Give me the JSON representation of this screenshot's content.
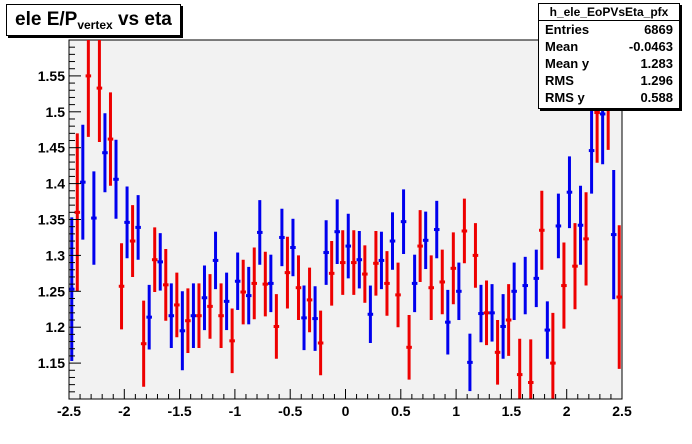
{
  "title": {
    "main": "ele E/P",
    "sub": "vertex",
    "rest": " vs eta"
  },
  "stats": {
    "name": "h_ele_EoPVsEta_pfx",
    "rows": [
      {
        "label": "Entries",
        "value": "6869"
      },
      {
        "label": "Mean",
        "value": "-0.0463"
      },
      {
        "label": "Mean y",
        "value": "1.283"
      },
      {
        "label": "RMS",
        "value": "1.296"
      },
      {
        "label": "RMS y",
        "value": "0.588"
      }
    ]
  },
  "chart_data": {
    "type": "scatter",
    "xlim": [
      -2.5,
      2.5
    ],
    "ylim": [
      1.1,
      1.6
    ],
    "xticks": [
      -2.5,
      -2,
      -1.5,
      -1,
      -0.5,
      0,
      0.5,
      1,
      1.5,
      2,
      2.5
    ],
    "xtick_labels": [
      "-2.5",
      "-2",
      "-1.5",
      "-1",
      "-0.5",
      "0",
      "0.5",
      "1",
      "1.5",
      "2",
      "2.5"
    ],
    "yticks": [
      1.15,
      1.2,
      1.25,
      1.3,
      1.35,
      1.4,
      1.45,
      1.5,
      1.55
    ],
    "ytick_labels": [
      "1.15",
      "1.2",
      "1.25",
      "1.3",
      "1.35",
      "1.4",
      "1.45",
      "1.5",
      "1.55"
    ],
    "background": "#f2f2f2",
    "series": [
      {
        "color": "#0000ee",
        "x": [
          -2.475,
          -2.375,
          -2.275,
          -2.175,
          -2.075,
          -1.975,
          -1.875,
          -1.775,
          -1.675,
          -1.575,
          -1.475,
          -1.375,
          -1.275,
          -1.175,
          -1.075,
          -0.975,
          -0.875,
          -0.775,
          -0.675,
          -0.575,
          -0.475,
          -0.375,
          -0.275,
          -0.175,
          -0.075,
          0.025,
          0.125,
          0.225,
          0.325,
          0.425,
          0.525,
          0.625,
          0.725,
          0.825,
          0.925,
          1.025,
          1.125,
          1.225,
          1.325,
          1.425,
          1.525,
          1.625,
          1.725,
          1.825,
          1.925,
          2.025,
          2.125,
          2.225,
          2.325,
          2.425
        ],
        "y": [
          1.253,
          1.402,
          1.352,
          1.443,
          1.406,
          1.346,
          1.339,
          1.214,
          1.291,
          1.216,
          1.195,
          1.216,
          1.241,
          1.293,
          1.236,
          1.264,
          1.244,
          1.332,
          1.261,
          1.325,
          1.311,
          1.213,
          1.212,
          1.304,
          1.333,
          1.313,
          1.294,
          1.218,
          1.293,
          1.32,
          1.347,
          1.261,
          1.321,
          1.336,
          1.207,
          1.25,
          1.151,
          1.219,
          1.22,
          1.201,
          1.25,
          1.258,
          1.268,
          1.196,
          1.341,
          1.388,
          1.342,
          1.446,
          1.497,
          1.329
        ],
        "err_lo": [
          0.1,
          0.08,
          0.065,
          0.055,
          0.055,
          0.05,
          0.045,
          0.045,
          0.04,
          0.045,
          0.055,
          0.045,
          0.045,
          0.04,
          0.04,
          0.04,
          0.04,
          0.045,
          0.04,
          0.04,
          0.04,
          0.045,
          0.045,
          0.045,
          0.045,
          0.045,
          0.04,
          0.04,
          0.04,
          0.04,
          0.045,
          0.04,
          0.04,
          0.04,
          0.045,
          0.04,
          0.04,
          0.04,
          0.04,
          0.045,
          0.04,
          0.04,
          0.04,
          0.04,
          0.045,
          0.05,
          0.055,
          0.06,
          0.07,
          0.09
        ],
        "err_hi": [
          0.1,
          0.08,
          0.065,
          0.055,
          0.055,
          0.05,
          0.045,
          0.045,
          0.04,
          0.045,
          0.055,
          0.045,
          0.045,
          0.04,
          0.04,
          0.04,
          0.04,
          0.045,
          0.04,
          0.04,
          0.04,
          0.045,
          0.045,
          0.045,
          0.045,
          0.045,
          0.04,
          0.04,
          0.04,
          0.04,
          0.045,
          0.04,
          0.04,
          0.04,
          0.045,
          0.04,
          0.04,
          0.04,
          0.04,
          0.045,
          0.04,
          0.04,
          0.04,
          0.04,
          0.045,
          0.05,
          0.055,
          0.06,
          0.07,
          0.09
        ]
      },
      {
        "color": "#ee0000",
        "x": [
          -2.425,
          -2.325,
          -2.225,
          -2.125,
          -2.025,
          -1.925,
          -1.825,
          -1.725,
          -1.625,
          -1.525,
          -1.425,
          -1.325,
          -1.225,
          -1.125,
          -1.025,
          -0.925,
          -0.825,
          -0.725,
          -0.625,
          -0.525,
          -0.425,
          -0.325,
          -0.225,
          -0.125,
          -0.025,
          0.075,
          0.175,
          0.275,
          0.375,
          0.475,
          0.575,
          0.675,
          0.775,
          0.875,
          0.975,
          1.075,
          1.175,
          1.275,
          1.375,
          1.475,
          1.575,
          1.675,
          1.775,
          1.875,
          1.975,
          2.075,
          2.175,
          2.275,
          2.375,
          2.475
        ],
        "y": [
          1.36,
          1.55,
          1.533,
          1.462,
          1.257,
          1.32,
          1.177,
          1.294,
          1.259,
          1.231,
          1.209,
          1.216,
          1.229,
          1.216,
          1.181,
          1.249,
          1.261,
          1.26,
          1.201,
          1.276,
          1.255,
          1.238,
          1.178,
          1.275,
          1.29,
          1.29,
          1.274,
          1.289,
          1.261,
          1.245,
          1.172,
          1.313,
          1.255,
          1.263,
          1.282,
          1.334,
          1.3,
          1.22,
          1.165,
          1.21,
          1.134,
          1.123,
          1.335,
          1.15,
          1.258,
          1.285,
          1.323,
          1.499,
          1.527,
          1.242
        ],
        "err_lo": [
          0.11,
          0.085,
          0.075,
          0.065,
          0.06,
          0.05,
          0.06,
          0.045,
          0.05,
          0.045,
          0.045,
          0.045,
          0.045,
          0.045,
          0.045,
          0.045,
          0.05,
          0.045,
          0.045,
          0.05,
          0.045,
          0.045,
          0.045,
          0.045,
          0.045,
          0.045,
          0.04,
          0.045,
          0.045,
          0.045,
          0.045,
          0.05,
          0.045,
          0.045,
          0.05,
          0.045,
          0.045,
          0.045,
          0.045,
          0.05,
          0.05,
          0.06,
          0.055,
          0.07,
          0.06,
          0.06,
          0.065,
          0.07,
          0.08,
          0.1
        ],
        "err_hi": [
          0.11,
          0.085,
          0.075,
          0.065,
          0.06,
          0.05,
          0.06,
          0.045,
          0.05,
          0.045,
          0.045,
          0.045,
          0.045,
          0.045,
          0.045,
          0.045,
          0.05,
          0.045,
          0.045,
          0.05,
          0.045,
          0.045,
          0.045,
          0.045,
          0.045,
          0.045,
          0.04,
          0.045,
          0.045,
          0.045,
          0.045,
          0.05,
          0.045,
          0.045,
          0.05,
          0.045,
          0.045,
          0.045,
          0.045,
          0.05,
          0.05,
          0.06,
          0.055,
          0.07,
          0.06,
          0.06,
          0.065,
          0.07,
          0.08,
          0.1
        ]
      }
    ]
  }
}
